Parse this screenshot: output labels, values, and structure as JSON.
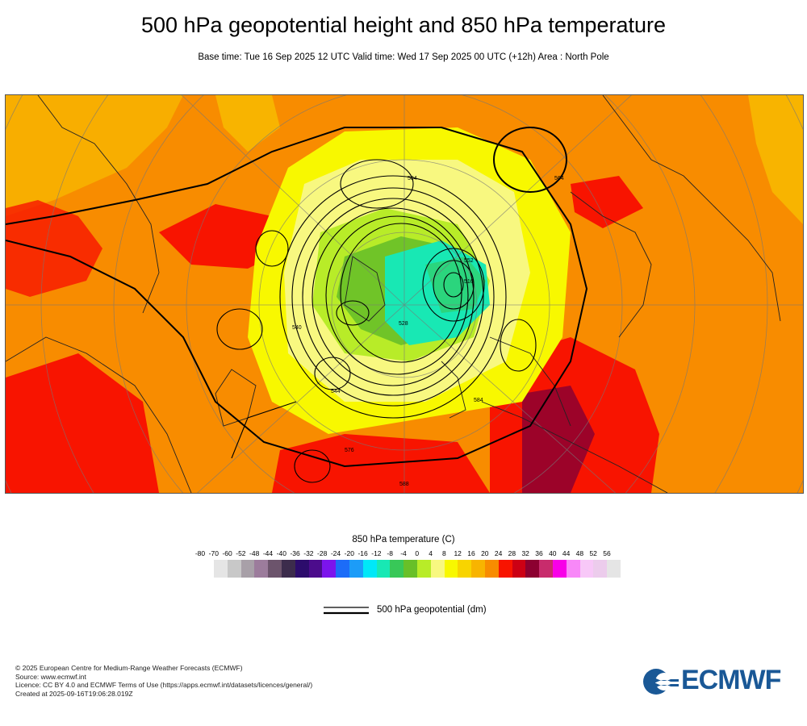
{
  "header": {
    "title": "500 hPa geopotential height and 850 hPa temperature",
    "subtitle": "Base time: Tue 16 Sep 2025 12 UTC Valid time: Wed 17 Sep 2025 00 UTC (+12h) Area : North Pole"
  },
  "map": {
    "contour_labels": [
      "504",
      "544",
      "564",
      "552",
      "528",
      "516",
      "540",
      "576",
      "588",
      "584"
    ]
  },
  "colorbar": {
    "title": "850 hPa temperature (C)",
    "ticks": [
      "-80",
      "-70",
      "-60",
      "-52",
      "-48",
      "-44",
      "-40",
      "-36",
      "-32",
      "-28",
      "-24",
      "-20",
      "-16",
      "-12",
      "-8",
      "-4",
      "0",
      "4",
      "8",
      "12",
      "16",
      "20",
      "24",
      "28",
      "32",
      "36",
      "40",
      "44",
      "48",
      "52",
      "56"
    ],
    "colors": [
      "#e5e5e5",
      "#c8c8c8",
      "#a8a0a8",
      "#9c7c9c",
      "#6c546c",
      "#3c2c4c",
      "#2c0c6c",
      "#4c0c8c",
      "#7c14ec",
      "#1c6cf8",
      "#1c9cf8",
      "#00e8f8",
      "#18e8b4",
      "#38c858",
      "#68c028",
      "#b8ec28",
      "#f8f880",
      "#f8f800",
      "#f8d400",
      "#f8b400",
      "#f88c00",
      "#f81400",
      "#cc0014",
      "#8c0030",
      "#c82c6c",
      "#f800e8",
      "#f888f8",
      "#f8c8f8",
      "#ecccec",
      "#e5e5e5"
    ]
  },
  "legend": {
    "line_label": "500 hPa geopotential (dm)"
  },
  "footer": {
    "lines": [
      "© 2025 European Centre for Medium-Range Weather Forecasts (ECMWF)",
      "Source: www.ecmwf.int",
      "Licence: CC BY 4.0 and ECMWF Terms of Use (https://apps.ecmwf.int/datasets/licences/general/)",
      "Created at 2025-09-16T19:06:28.019Z"
    ]
  },
  "logo": {
    "text": "ECMWF",
    "color": "#1a5896"
  }
}
